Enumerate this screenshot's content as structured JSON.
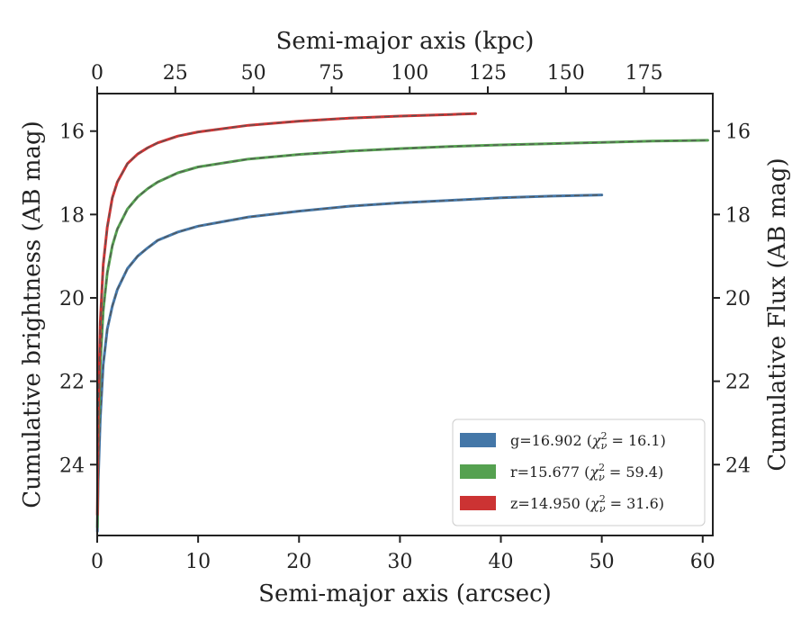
{
  "chart_data": {
    "type": "line",
    "xlabel": "Semi-major axis (arcsec)",
    "ylabel": "Cumulative brightness (AB mag)",
    "top_xlabel": "Semi-major axis (kpc)",
    "right_ylabel": "Cumulative Flux (AB mag)",
    "xlim": [
      0,
      61
    ],
    "ylim": [
      25.7,
      15.1
    ],
    "y_inverted": true,
    "top_xlim": [
      0,
      197
    ],
    "x_ticks": [
      "0",
      "10",
      "20",
      "30",
      "40",
      "50",
      "60"
    ],
    "y_ticks": [
      "16",
      "18",
      "20",
      "22",
      "24"
    ],
    "top_x_ticks": [
      "0",
      "25",
      "50",
      "75",
      "100",
      "125",
      "150",
      "175"
    ],
    "legend_position": "lower-right",
    "grid": false,
    "series": [
      {
        "name": "g",
        "legend": "g=16.902 (χ²ν = 16.1)",
        "legend_main": "g=16.902 (",
        "legend_chi": "χ",
        "legend_sup": "2",
        "legend_sub": "ν",
        "legend_tail": " = 16.1)",
        "color": "#4477a8",
        "x": [
          0.02,
          0.1,
          0.3,
          0.6,
          1,
          1.5,
          2,
          3,
          4,
          5,
          6,
          8,
          10,
          15,
          20,
          25,
          30,
          35,
          40,
          45,
          50
        ],
        "y": [
          25.6,
          24.4,
          22.9,
          21.6,
          20.75,
          20.2,
          19.8,
          19.3,
          19.0,
          18.8,
          18.62,
          18.42,
          18.28,
          18.06,
          17.92,
          17.8,
          17.72,
          17.66,
          17.6,
          17.56,
          17.53
        ]
      },
      {
        "name": "r",
        "legend": "r=15.677 (χ²ν = 59.4)",
        "legend_main": "r=15.677 (",
        "legend_chi": "χ",
        "legend_sup": "2",
        "legend_sub": "ν",
        "legend_tail": " = 59.4)",
        "color": "#55a150",
        "x": [
          0.02,
          0.1,
          0.3,
          0.6,
          1,
          1.5,
          2,
          3,
          4,
          5,
          6,
          8,
          10,
          15,
          20,
          25,
          30,
          35,
          40,
          45,
          50,
          55,
          60.5
        ],
        "y": [
          25.5,
          23.5,
          21.6,
          20.3,
          19.4,
          18.75,
          18.35,
          17.87,
          17.58,
          17.38,
          17.22,
          17.0,
          16.86,
          16.67,
          16.56,
          16.48,
          16.42,
          16.37,
          16.33,
          16.3,
          16.27,
          16.24,
          16.22
        ]
      },
      {
        "name": "z",
        "legend": "z=14.950 (χ²ν = 31.6)",
        "legend_main": "z=14.950 (",
        "legend_chi": "χ",
        "legend_sup": "2",
        "legend_sub": "ν",
        "legend_tail": " = 31.6)",
        "color": "#cc3333",
        "x": [
          0.02,
          0.1,
          0.3,
          0.6,
          1,
          1.5,
          2,
          3,
          4,
          5,
          6,
          8,
          10,
          15,
          20,
          25,
          30,
          35,
          37.5
        ],
        "y": [
          25.2,
          22.8,
          20.6,
          19.2,
          18.3,
          17.6,
          17.22,
          16.78,
          16.55,
          16.4,
          16.28,
          16.12,
          16.02,
          15.86,
          15.76,
          15.69,
          15.64,
          15.6,
          15.58
        ]
      }
    ]
  }
}
